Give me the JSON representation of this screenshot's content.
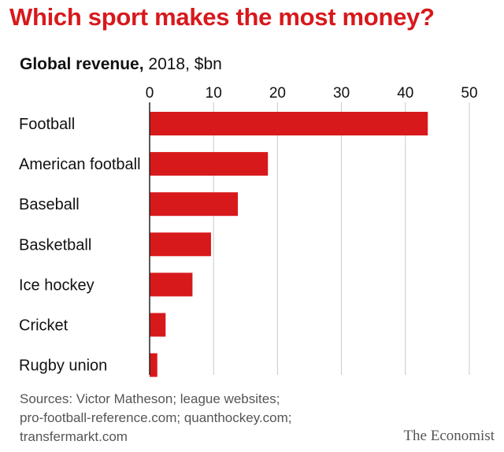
{
  "chart_data": {
    "type": "bar",
    "orientation": "horizontal",
    "title": "Which sport makes the most money?",
    "subtitle_bold": "Global revenue,",
    "subtitle_rest": " 2018, $bn",
    "categories": [
      "Football",
      "American football",
      "Baseball",
      "Basketball",
      "Ice hockey",
      "Cricket",
      "Rugby union"
    ],
    "values": [
      43.5,
      18.5,
      13.8,
      9.6,
      6.7,
      2.5,
      1.2
    ],
    "xlim": [
      0,
      50
    ],
    "xticks": [
      0,
      10,
      20,
      30,
      40,
      50
    ],
    "xlabel": "",
    "ylabel": "",
    "grid": true,
    "bar_color": "#d7191c"
  },
  "source_lines": [
    "Sources: Victor Matheson; league websites;",
    "pro-football-reference.com; quanthockey.com;",
    "transfermarkt.com"
  ],
  "brand": "The Economist",
  "colors": {
    "accent": "#d7191c",
    "grid": "#c8c8c8",
    "text": "#111111",
    "muted": "#555555"
  }
}
